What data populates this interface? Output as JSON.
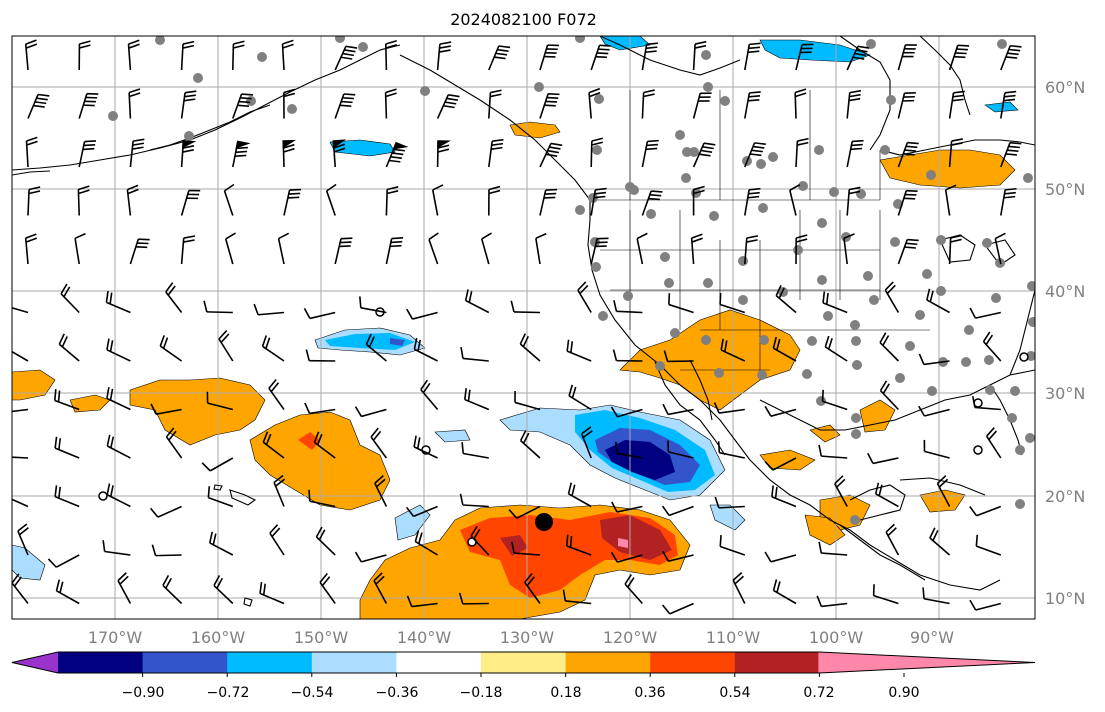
{
  "title": "2024082100 F072",
  "lon_labels": [
    "170°W",
    "160°W",
    "150°W",
    "140°W",
    "130°W",
    "120°W",
    "110°W",
    "100°W",
    "90°W"
  ],
  "lat_labels": [
    "60°N",
    "50°N",
    "40°N",
    "30°N",
    "20°N",
    "10°N"
  ],
  "colorbar": {
    "tick_labels": [
      "−0.90",
      "−0.72",
      "−0.54",
      "−0.36",
      "−0.18",
      "0.18",
      "0.36",
      "0.54",
      "0.72",
      "0.90"
    ],
    "colors": [
      "#9933cc",
      "#000080",
      "#3355cc",
      "#00bbff",
      "#aaddff",
      "#ffffff",
      "#ffee88",
      "#ffa500",
      "#ff4500",
      "#b22222",
      "#ff88aa"
    ]
  },
  "colors": {
    "land_line": "#000000",
    "grid": "#aaaaaa",
    "station_dot": "#808080"
  }
}
